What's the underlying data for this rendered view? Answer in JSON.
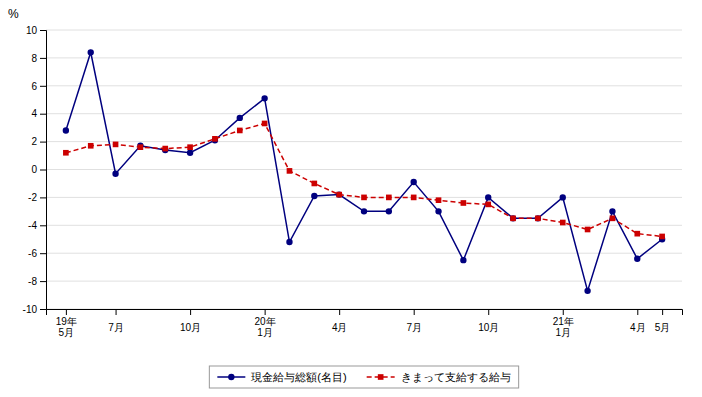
{
  "chart_data": {
    "type": "line",
    "y_label": "%",
    "categories": [
      "19年\n5月",
      null,
      "7月",
      null,
      null,
      "10月",
      null,
      null,
      "20年\n1月",
      null,
      null,
      "4月",
      null,
      null,
      "7月",
      null,
      null,
      "10月",
      null,
      null,
      "21年\n1月",
      null,
      null,
      "4月",
      "5月"
    ],
    "series": [
      {
        "name": "現金給与総額(名目)",
        "color": "#00007f",
        "marker": "circle",
        "line_style": "solid",
        "values": [
          2.8,
          8.4,
          -0.3,
          1.7,
          1.4,
          1.2,
          2.1,
          3.7,
          5.1,
          -5.2,
          -1.9,
          -1.8,
          -3.0,
          -3.0,
          -0.9,
          -3.0,
          -6.5,
          -2.0,
          -3.5,
          -3.5,
          -2.0,
          -8.7,
          -3.0,
          -6.4,
          -5.0
        ]
      },
      {
        "name": "きまって支給する給与",
        "color": "#cc0000",
        "marker": "square",
        "line_style": "dashed",
        "values": [
          1.2,
          1.7,
          1.8,
          1.6,
          1.5,
          1.6,
          2.2,
          2.8,
          3.3,
          -0.1,
          -1.0,
          -1.8,
          -2.0,
          -2.0,
          -2.0,
          -2.2,
          -2.4,
          -2.5,
          -3.5,
          -3.5,
          -3.8,
          -4.3,
          -3.5,
          -4.6,
          -4.8
        ]
      }
    ],
    "ylim": [
      -10,
      10
    ],
    "yticks": [
      -10,
      -8,
      -6,
      -4,
      -2,
      0,
      2,
      4,
      6,
      8,
      10
    ],
    "grid": true,
    "legend": "bottom"
  }
}
